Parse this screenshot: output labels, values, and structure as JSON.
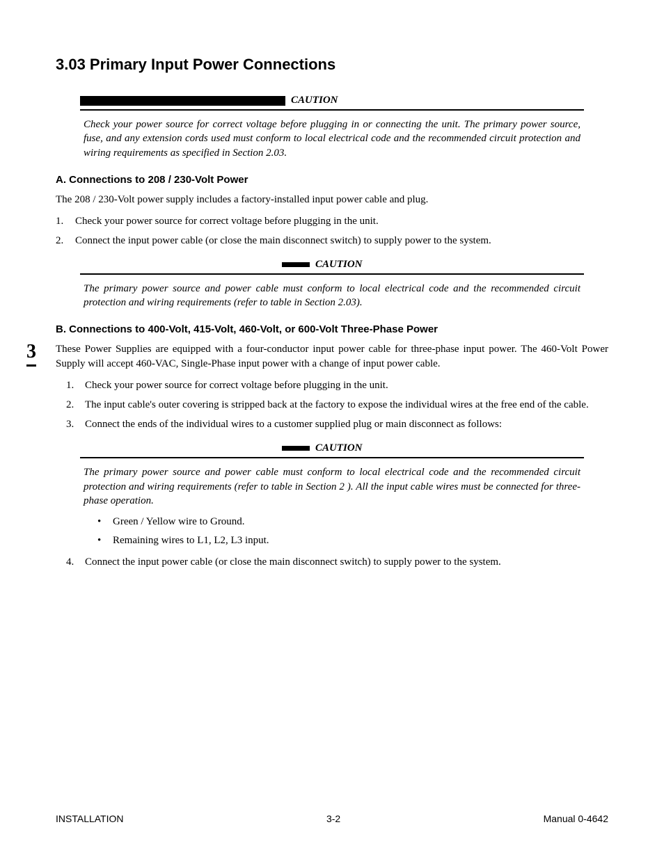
{
  "chapter_tab": "3",
  "section_title": "3.03 Primary Input Power Connections",
  "caution1": {
    "label": "CAUTION",
    "text": "Check your power source for correct voltage before plugging in or connecting the unit.   The primary power source, fuse, and any extension cords used must conform to local electrical code and the recommended circuit protection and wiring requirements as specified in Section 2.03."
  },
  "subA": {
    "heading": "A.  Connections to 208 / 230-Volt Power",
    "intro": "The 208 / 230-Volt power supply includes a factory-installed input power cable and plug.",
    "items": [
      "Check your power source for correct voltage before plugging in the unit.",
      "Connect the input power cable (or close the main disconnect switch) to supply power to the system."
    ]
  },
  "caution2": {
    "label": "CAUTION",
    "text": "The primary power source and power cable must conform to local electrical code and the recommended circuit protection and wiring requirements (refer to table in  Section 2.03)."
  },
  "subB": {
    "heading": "B.  Connections to 400-Volt, 415-Volt, 460-Volt, or 600-Volt  Three-Phase Power",
    "intro": "These Power Supplies are equipped with a four-conductor input power cable for three-phase input power.  The 460-Volt Power Supply will accept 460-VAC, Single-Phase input power with a change of input power cable.",
    "items": [
      "Check your power source for correct voltage before plugging in the unit.",
      "The input cable's outer covering is stripped back at the factory to expose the individual wires at the free end of the cable.",
      "Connect the ends of the individual wires to a customer supplied plug or main disconnect as follows:"
    ]
  },
  "caution3": {
    "label": "CAUTION",
    "text": "The primary power source and power cable must conform to local electrical code and the recommended circuit protection and wiring requirements (refer to table in Section 2 ). All the input cable wires must be connected for three-phase operation."
  },
  "bullets": [
    "Green / Yellow wire to Ground.",
    "Remaining wires to L1, L2, L3 input."
  ],
  "final_item": "Connect the input power cable (or close the main disconnect switch) to supply power to the system.",
  "footer": {
    "left": "INSTALLATION",
    "center": "3-2",
    "right": "Manual 0-4642"
  }
}
